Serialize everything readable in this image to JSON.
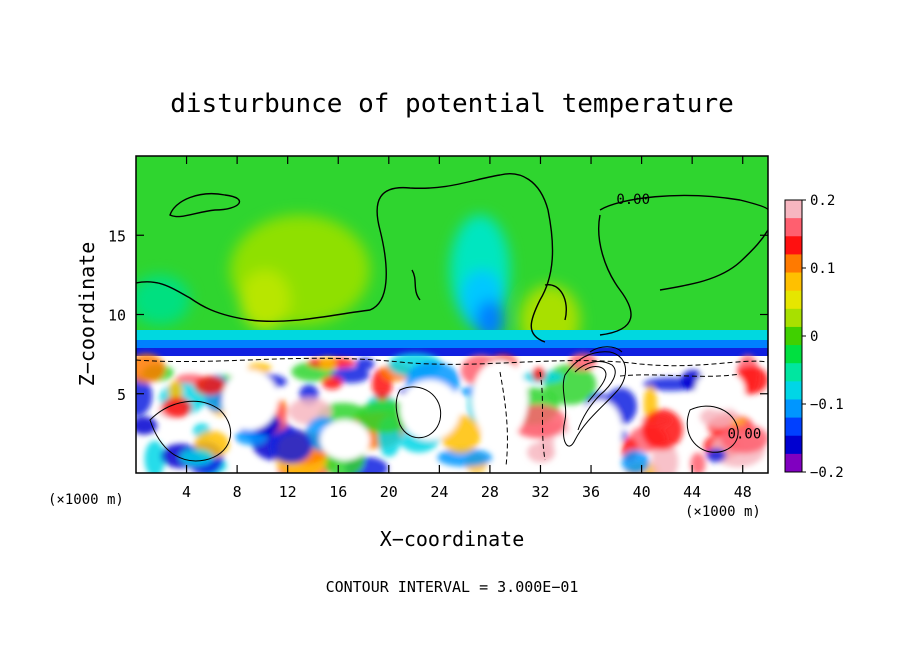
{
  "chart_data": {
    "type": "heatmap",
    "title": "disturbunce of potential temperature",
    "xlabel": "X−coordinate",
    "ylabel": "Z−coordinate",
    "x_unit": "(×1000 m)",
    "x_unit_right": "(×1000 m)",
    "xlim": [
      0,
      50
    ],
    "ylim": [
      0,
      20
    ],
    "x_ticks": [
      "4",
      "8",
      "12",
      "16",
      "20",
      "24",
      "28",
      "32",
      "36",
      "40",
      "44",
      "48"
    ],
    "x_tick_values": [
      4,
      8,
      12,
      16,
      20,
      24,
      28,
      32,
      36,
      40,
      44,
      48
    ],
    "y_ticks": [
      "5",
      "10",
      "15"
    ],
    "y_tick_values": [
      5,
      10,
      15
    ],
    "colorbar": {
      "range": [
        -0.2,
        0.2
      ],
      "ticks": [
        "0.2",
        "0.1",
        "0",
        "−0.1",
        "−0.2"
      ],
      "tick_values": [
        0.2,
        0.1,
        0,
        -0.1,
        -0.2
      ],
      "colors": [
        "#f7b6c0",
        "#ff5f6f",
        "#ff1010",
        "#ff7a00",
        "#ffc000",
        "#e6e600",
        "#a8e000",
        "#40d000",
        "#00e040",
        "#00e6a0",
        "#00d6e6",
        "#0096ff",
        "#0040ff",
        "#0000d0",
        "#8000c0"
      ]
    },
    "contour_labels": [
      {
        "text": "0.00",
        "x": 38.0,
        "z": 17.3
      },
      {
        "text": "0.00",
        "x": 46.8,
        "z": 2.5
      }
    ],
    "annotation": "CONTOUR INTERVAL = 3.000E−01",
    "grid": false
  }
}
